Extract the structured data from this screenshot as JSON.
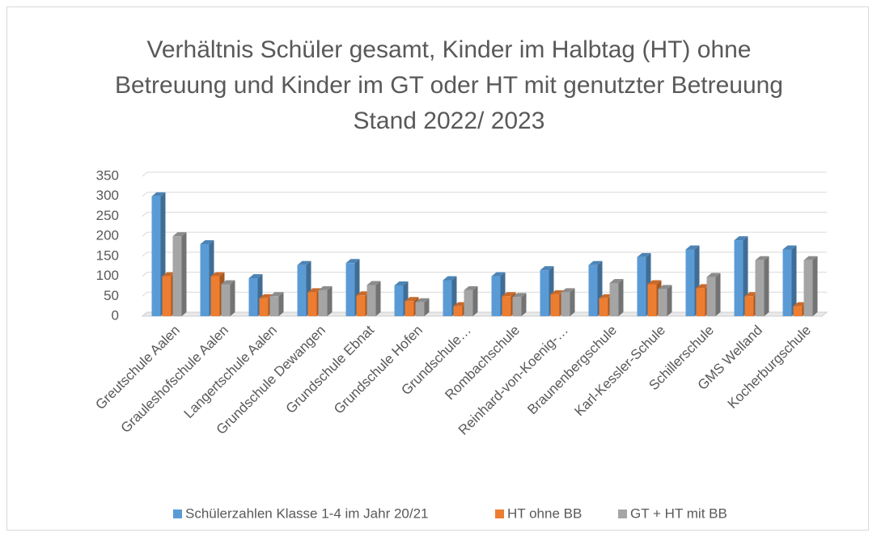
{
  "chart_data": {
    "type": "bar",
    "title": "Verhältnis Schüler gesamt, Kinder im Halbtag (HT) ohne Betreuung und Kinder im GT oder HT mit genutzter Betreuung Stand 2022/ 2023",
    "categories": [
      "Greutschule Aalen",
      "Grauleshofschule Aalen",
      "Langertschule Aalen",
      "Grundschule Dewangen",
      "Grundschule Ebnat",
      "Grundschule Hofen",
      "Grundschule…",
      "Rombachschule",
      "Reinhard-von-Koenig-…",
      "Braunenbergschule",
      "Karl-Kessler-Schule",
      "Schillerschule",
      "GMS Welland",
      "Kocherburgschule"
    ],
    "series": [
      {
        "name": "Schülerzahlen Klasse 1-4 im Jahr 20/21",
        "color": "#5b9bd5",
        "values": [
          300,
          180,
          95,
          128,
          133,
          77,
          90,
          100,
          115,
          128,
          148,
          167,
          190,
          167
        ]
      },
      {
        "name": "HT ohne BB",
        "color": "#ed7d31",
        "values": [
          100,
          100,
          45,
          60,
          52,
          38,
          25,
          50,
          55,
          45,
          80,
          70,
          50,
          25
        ]
      },
      {
        "name": "GT + HT mit BB",
        "color": "#a5a5a5",
        "values": [
          200,
          80,
          50,
          65,
          78,
          35,
          65,
          48,
          60,
          83,
          68,
          98,
          140,
          140
        ]
      }
    ],
    "ylim": [
      0,
      350
    ],
    "yticks": [
      0,
      50,
      100,
      150,
      200,
      250,
      300,
      350
    ],
    "grid": true,
    "legend": "bottom"
  }
}
